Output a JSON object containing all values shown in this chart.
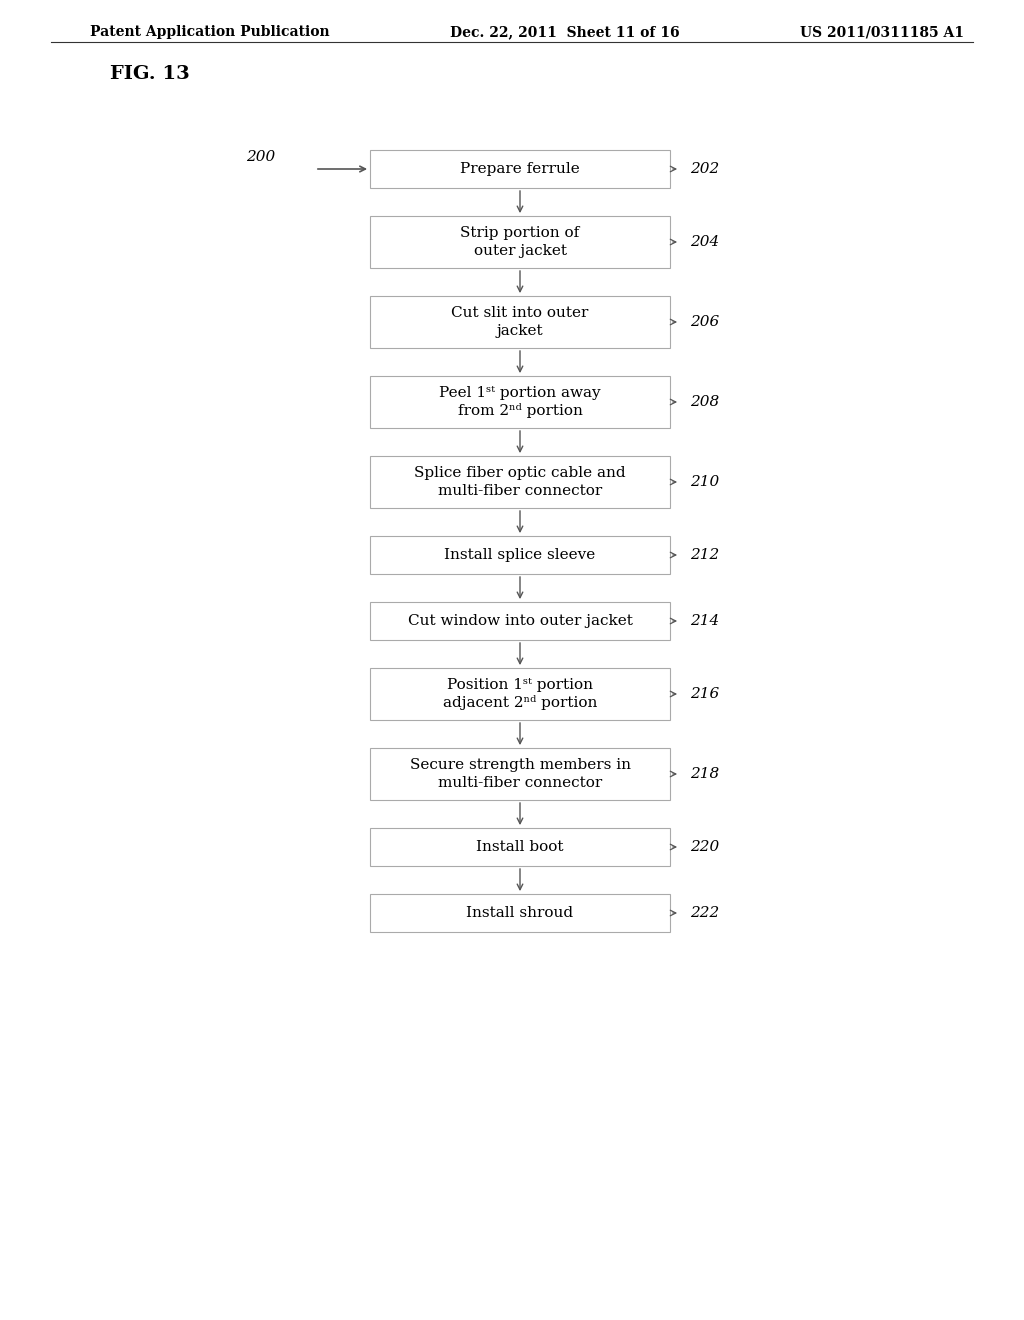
{
  "header_left": "Patent Application Publication",
  "header_mid": "Dec. 22, 2011  Sheet 11 of 16",
  "header_right": "US 2011/0311185 A1",
  "fig_label": "FIG. 13",
  "flow_label": "200",
  "steps": [
    {
      "label": "Prepare ferrule",
      "num": "202",
      "multiline": false
    },
    {
      "label": "Strip portion of\nouter jacket",
      "num": "204",
      "multiline": true
    },
    {
      "label": "Cut slit into outer\njacket",
      "num": "206",
      "multiline": true
    },
    {
      "label": "Peel 1ˢᵗ portion away\nfrom 2ⁿᵈ portion",
      "num": "208",
      "multiline": true
    },
    {
      "label": "Splice fiber optic cable and\nmulti-fiber connector",
      "num": "210",
      "multiline": true
    },
    {
      "label": "Install splice sleeve",
      "num": "212",
      "multiline": false
    },
    {
      "label": "Cut window into outer jacket",
      "num": "214",
      "multiline": false
    },
    {
      "label": "Position 1ˢᵗ portion\nadjacent 2ⁿᵈ portion",
      "num": "216",
      "multiline": true
    },
    {
      "label": "Secure strength members in\nmulti-fiber connector",
      "num": "218",
      "multiline": true
    },
    {
      "label": "Install boot",
      "num": "220",
      "multiline": false
    },
    {
      "label": "Install shroud",
      "num": "222",
      "multiline": false
    }
  ],
  "bg_color": "#ffffff",
  "box_edge_color": "#aaaaaa",
  "box_fill_color": "#ffffff",
  "text_color": "#000000",
  "arrow_color": "#555555",
  "font_size": 11,
  "header_font_size": 10
}
